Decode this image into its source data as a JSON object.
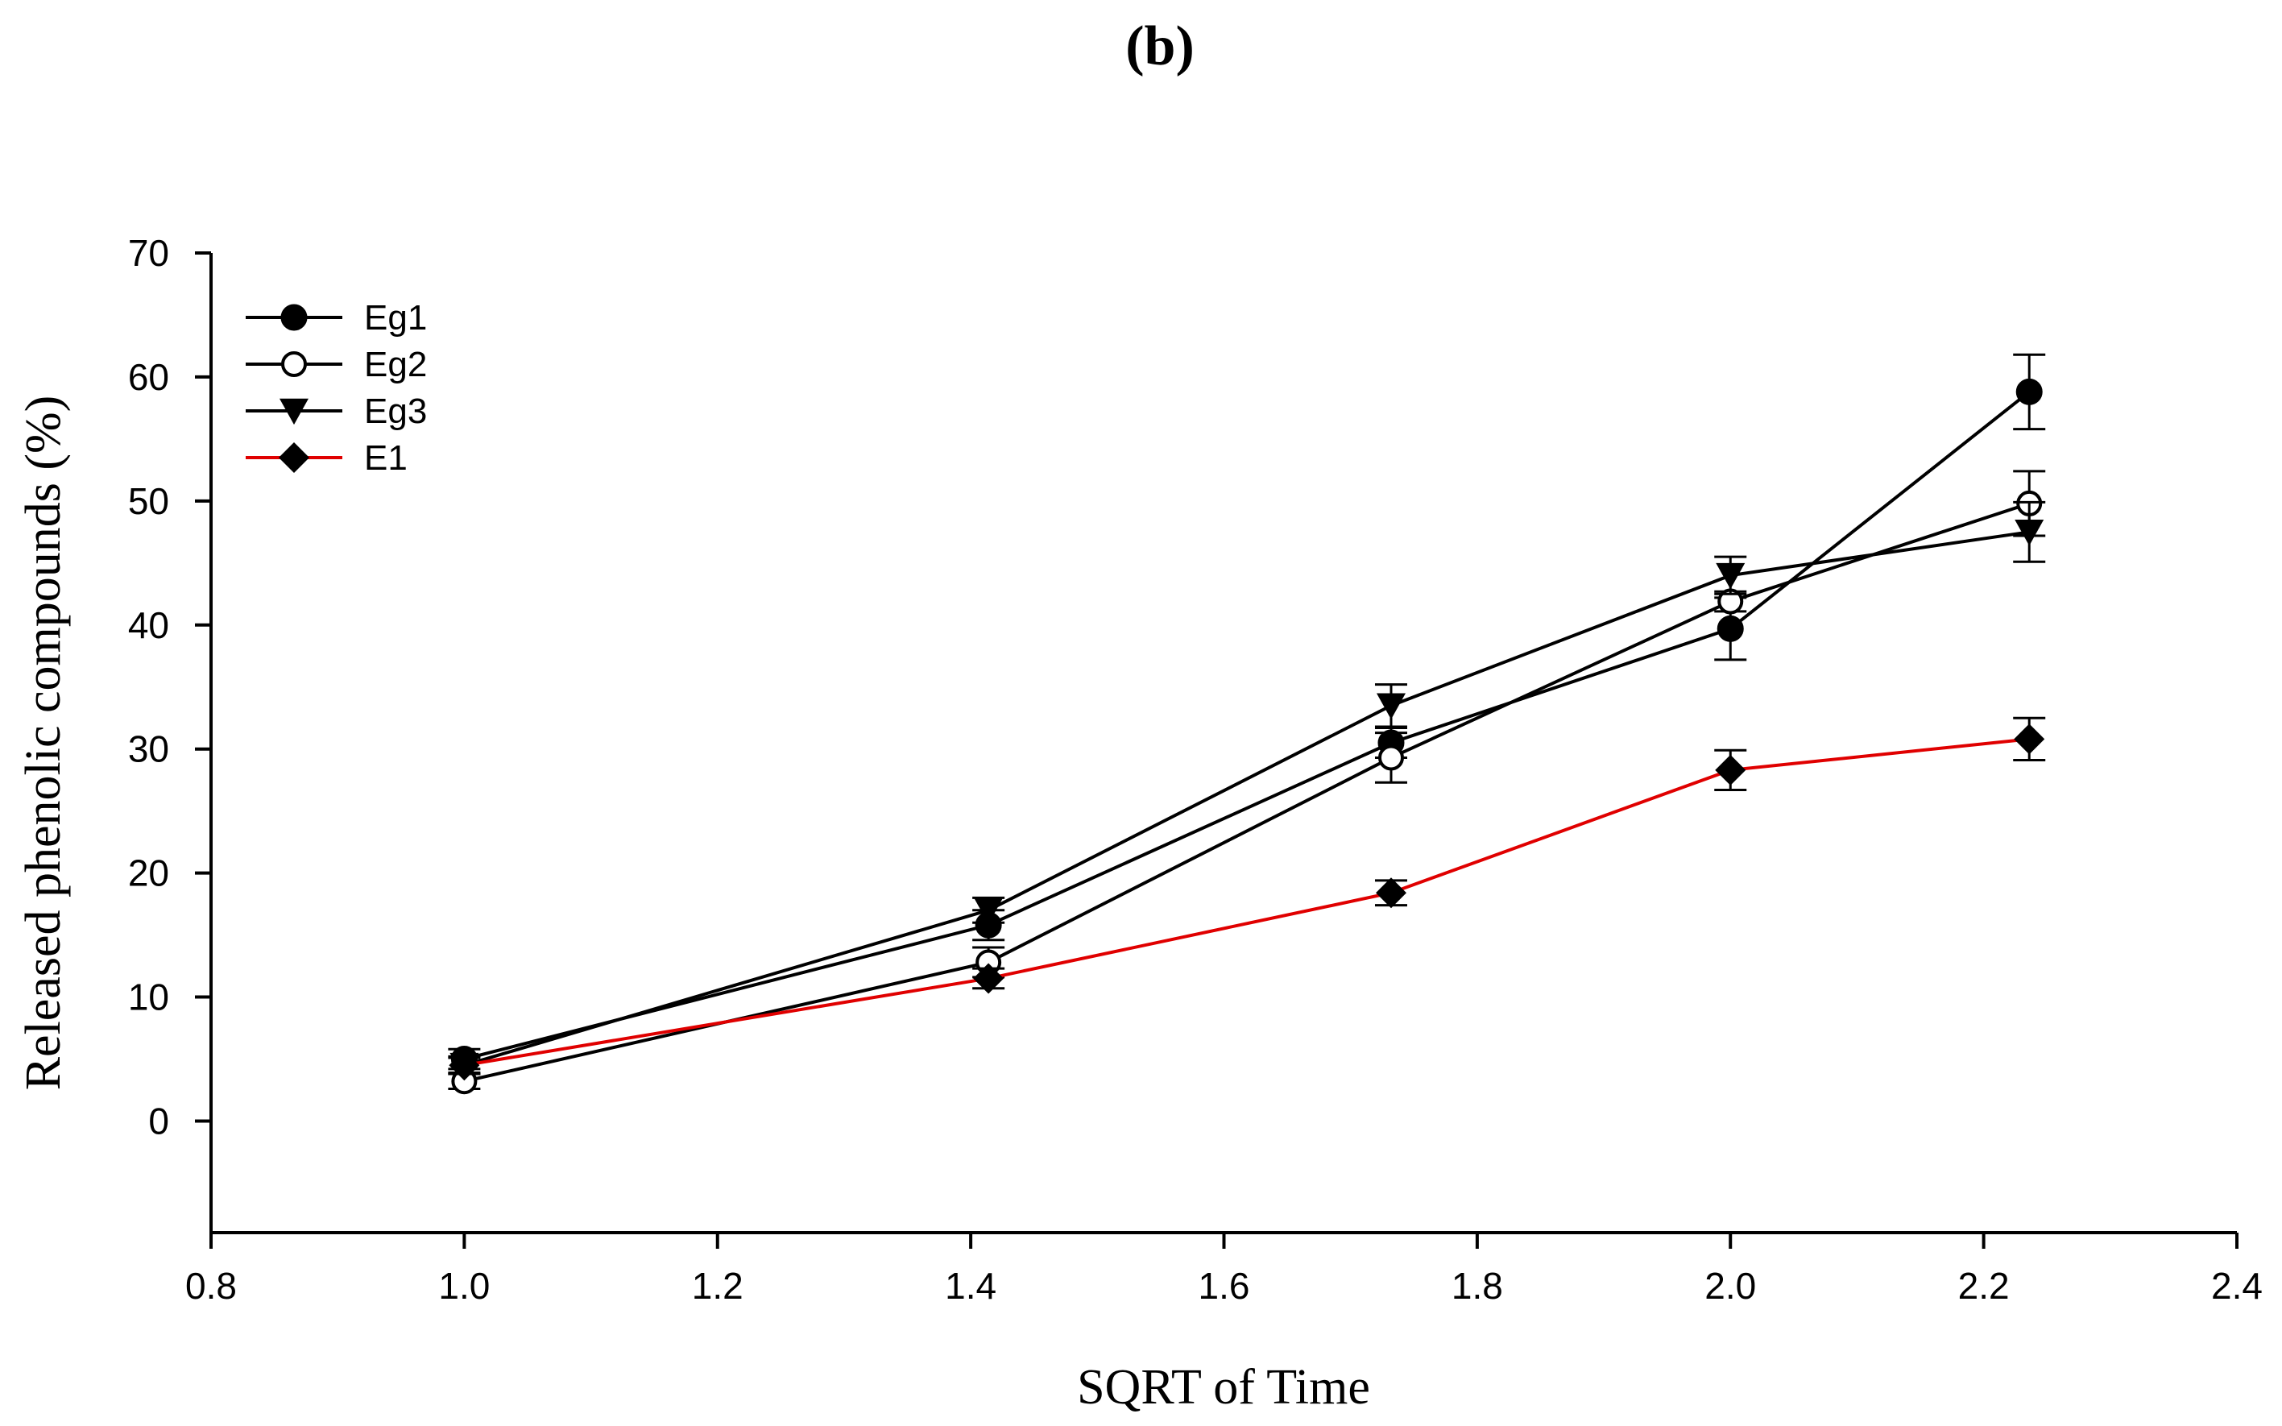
{
  "chart_data": {
    "type": "line",
    "panel_label": "b",
    "title": "(b)",
    "xlabel": "SQRT of Time",
    "ylabel": "Released phenolic compounds (%)",
    "xlim": [
      0.8,
      2.4
    ],
    "ylim": [
      -9,
      70
    ],
    "x_ticks": [
      0.8,
      1.0,
      1.2,
      1.4,
      1.6,
      1.8,
      2.0,
      2.2,
      2.4
    ],
    "x_tick_labels": [
      "0.8",
      "1.0",
      "1.2",
      "1.4",
      "1.6",
      "1.8",
      "2.0",
      "2.2",
      "2.4"
    ],
    "y_ticks": [
      0,
      10,
      20,
      30,
      40,
      50,
      60,
      70
    ],
    "y_tick_labels": [
      "0",
      "10",
      "20",
      "30",
      "40",
      "50",
      "60",
      "70"
    ],
    "legend_position": "top-left",
    "x": [
      1.0,
      1.414,
      1.732,
      2.0,
      2.236
    ],
    "series": [
      {
        "name": "Eg1",
        "marker": "circle-filled",
        "color": "#000000",
        "values": [
          5.0,
          15.8,
          30.5,
          39.7,
          58.8
        ],
        "errors": [
          0.8,
          1.2,
          1.2,
          2.5,
          3.0
        ]
      },
      {
        "name": "Eg2",
        "marker": "circle-open",
        "color": "#000000",
        "values": [
          3.2,
          12.8,
          29.3,
          41.9,
          49.8
        ],
        "errors": [
          0.6,
          1.2,
          2.0,
          0.8,
          2.6
        ]
      },
      {
        "name": "Eg3",
        "marker": "triangle-down",
        "color": "#000000",
        "values": [
          4.5,
          17.0,
          33.5,
          44.0,
          47.5
        ],
        "errors": [
          0.7,
          1.0,
          1.7,
          1.5,
          2.4
        ]
      },
      {
        "name": "E1",
        "marker": "diamond",
        "color": "#e00000",
        "values": [
          4.5,
          11.5,
          18.4,
          28.3,
          30.8
        ],
        "errors": [
          0.6,
          0.8,
          1.0,
          1.6,
          1.7
        ]
      }
    ]
  }
}
